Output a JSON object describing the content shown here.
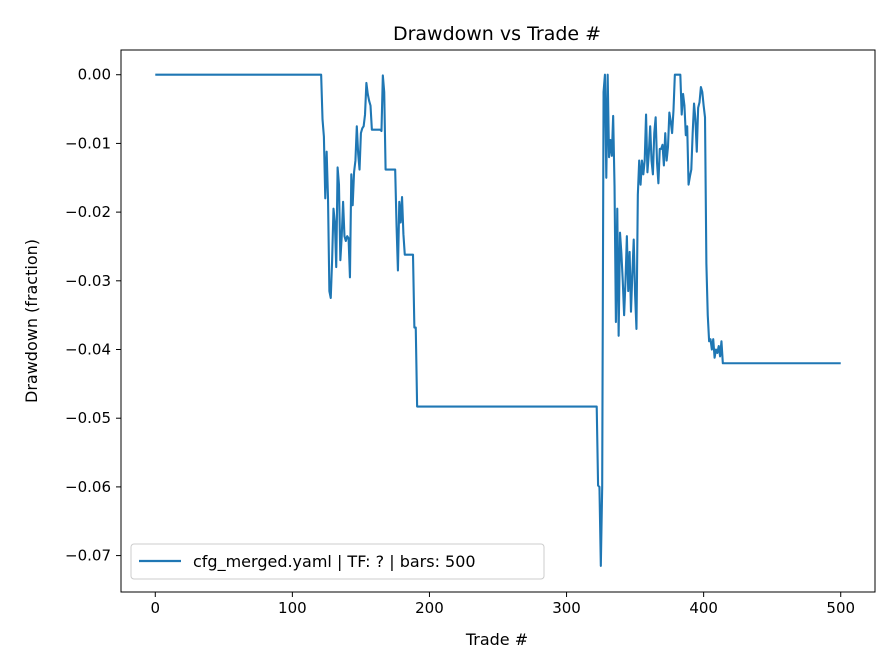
{
  "chart_data": {
    "type": "line",
    "title": "Drawdown vs Trade #",
    "xlabel": "Trade #",
    "ylabel": "Drawdown (fraction)",
    "xlim": [
      -25,
      525
    ],
    "ylim": [
      -0.0753,
      0.0036
    ],
    "xticks": [
      0,
      100,
      200,
      300,
      400,
      500
    ],
    "xtick_labels": [
      "0",
      "100",
      "200",
      "300",
      "400",
      "500"
    ],
    "yticks": [
      0.0,
      -0.01,
      -0.02,
      -0.03,
      -0.04,
      -0.05,
      -0.06,
      -0.07
    ],
    "ytick_labels": [
      "0.00",
      "−0.01",
      "−0.02",
      "−0.03",
      "−0.04",
      "−0.05",
      "−0.06",
      "−0.07"
    ],
    "grid": false,
    "legend_position": "lower-left",
    "series": [
      {
        "name": "cfg_merged.yaml | TF: ? | bars: 500",
        "color": "#1f77b4",
        "points": [
          [
            0,
            0.0
          ],
          [
            121,
            0.0
          ],
          [
            122,
            -0.0065
          ],
          [
            123,
            -0.009
          ],
          [
            124,
            -0.018
          ],
          [
            125,
            -0.0112
          ],
          [
            126,
            -0.018
          ],
          [
            127,
            -0.0315
          ],
          [
            128,
            -0.0325
          ],
          [
            129,
            -0.027
          ],
          [
            130,
            -0.0195
          ],
          [
            131,
            -0.0215
          ],
          [
            132,
            -0.028
          ],
          [
            133,
            -0.0135
          ],
          [
            134,
            -0.016
          ],
          [
            135,
            -0.027
          ],
          [
            136,
            -0.0235
          ],
          [
            137,
            -0.0185
          ],
          [
            138,
            -0.0235
          ],
          [
            139,
            -0.0242
          ],
          [
            140,
            -0.0235
          ],
          [
            141,
            -0.0238
          ],
          [
            142,
            -0.0295
          ],
          [
            143,
            -0.0145
          ],
          [
            144,
            -0.019
          ],
          [
            145,
            -0.0142
          ],
          [
            146,
            -0.0125
          ],
          [
            147,
            -0.0075
          ],
          [
            148,
            -0.0115
          ],
          [
            149,
            -0.0138
          ],
          [
            150,
            -0.0085
          ],
          [
            151,
            -0.0078
          ],
          [
            152,
            -0.0075
          ],
          [
            153,
            -0.0058
          ],
          [
            154,
            -0.0012
          ],
          [
            155,
            -0.0028
          ],
          [
            156,
            -0.0038
          ],
          [
            157,
            -0.0045
          ],
          [
            158,
            -0.008
          ],
          [
            164,
            -0.008
          ],
          [
            165,
            -0.0082
          ],
          [
            166,
            -0.0001
          ],
          [
            167,
            -0.0025
          ],
          [
            168,
            -0.0138
          ],
          [
            175,
            -0.0138
          ],
          [
            176,
            -0.022
          ],
          [
            177,
            -0.0285
          ],
          [
            178,
            -0.0185
          ],
          [
            179,
            -0.0215
          ],
          [
            180,
            -0.0178
          ],
          [
            181,
            -0.0232
          ],
          [
            182,
            -0.0262
          ],
          [
            188,
            -0.0262
          ],
          [
            189,
            -0.0368
          ],
          [
            190,
            -0.0368
          ],
          [
            191,
            -0.0483
          ],
          [
            322,
            -0.0483
          ],
          [
            323,
            -0.0598
          ],
          [
            324,
            -0.06
          ],
          [
            325,
            -0.0715
          ],
          [
            326,
            -0.06
          ],
          [
            327,
            -0.0025
          ],
          [
            328,
            0.0
          ],
          [
            329,
            -0.015
          ],
          [
            330,
            0.0
          ],
          [
            331,
            -0.012
          ],
          [
            332,
            -0.0095
          ],
          [
            333,
            -0.0118
          ],
          [
            334,
            -0.006
          ],
          [
            335,
            -0.0162
          ],
          [
            336,
            -0.036
          ],
          [
            337,
            -0.0195
          ],
          [
            338,
            -0.038
          ],
          [
            339,
            -0.023
          ],
          [
            340,
            -0.026
          ],
          [
            341,
            -0.03
          ],
          [
            342,
            -0.035
          ],
          [
            343,
            -0.03
          ],
          [
            344,
            -0.0235
          ],
          [
            345,
            -0.0315
          ],
          [
            346,
            -0.0258
          ],
          [
            347,
            -0.0345
          ],
          [
            348,
            -0.029
          ],
          [
            349,
            -0.024
          ],
          [
            350,
            -0.032
          ],
          [
            351,
            -0.037
          ],
          [
            352,
            -0.0175
          ],
          [
            353,
            -0.0125
          ],
          [
            354,
            -0.016
          ],
          [
            355,
            -0.0125
          ],
          [
            356,
            -0.0145
          ],
          [
            357,
            -0.0125
          ],
          [
            358,
            -0.0058
          ],
          [
            359,
            -0.0142
          ],
          [
            360,
            -0.0115
          ],
          [
            361,
            -0.0075
          ],
          [
            362,
            -0.0125
          ],
          [
            363,
            -0.0145
          ],
          [
            364,
            -0.0085
          ],
          [
            365,
            -0.0062
          ],
          [
            366,
            -0.0128
          ],
          [
            367,
            -0.0158
          ],
          [
            368,
            -0.0108
          ],
          [
            369,
            -0.0108
          ],
          [
            370,
            -0.0102
          ],
          [
            371,
            -0.0132
          ],
          [
            372,
            -0.0085
          ],
          [
            373,
            -0.0125
          ],
          [
            374,
            -0.0105
          ],
          [
            375,
            -0.0055
          ],
          [
            376,
            -0.0068
          ],
          [
            377,
            -0.0085
          ],
          [
            378,
            -0.0052
          ],
          [
            379,
            0.0
          ],
          [
            383,
            0.0
          ],
          [
            384,
            -0.0058
          ],
          [
            385,
            -0.0028
          ],
          [
            386,
            -0.0045
          ],
          [
            387,
            -0.0088
          ],
          [
            388,
            -0.0075
          ],
          [
            389,
            -0.016
          ],
          [
            390,
            -0.0148
          ],
          [
            391,
            -0.0138
          ],
          [
            392,
            -0.0085
          ],
          [
            393,
            -0.0042
          ],
          [
            394,
            -0.0065
          ],
          [
            395,
            -0.0112
          ],
          [
            396,
            -0.0048
          ],
          [
            397,
            -0.004
          ],
          [
            398,
            -0.0018
          ],
          [
            399,
            -0.0025
          ],
          [
            400,
            -0.0045
          ],
          [
            401,
            -0.0062
          ],
          [
            402,
            -0.0275
          ],
          [
            403,
            -0.035
          ],
          [
            404,
            -0.0388
          ],
          [
            405,
            -0.0385
          ],
          [
            406,
            -0.04
          ],
          [
            407,
            -0.0385
          ],
          [
            408,
            -0.0412
          ],
          [
            409,
            -0.04
          ],
          [
            410,
            -0.0405
          ],
          [
            411,
            -0.0395
          ],
          [
            412,
            -0.041
          ],
          [
            413,
            -0.0388
          ],
          [
            414,
            -0.042
          ],
          [
            500,
            -0.042
          ]
        ]
      }
    ]
  }
}
